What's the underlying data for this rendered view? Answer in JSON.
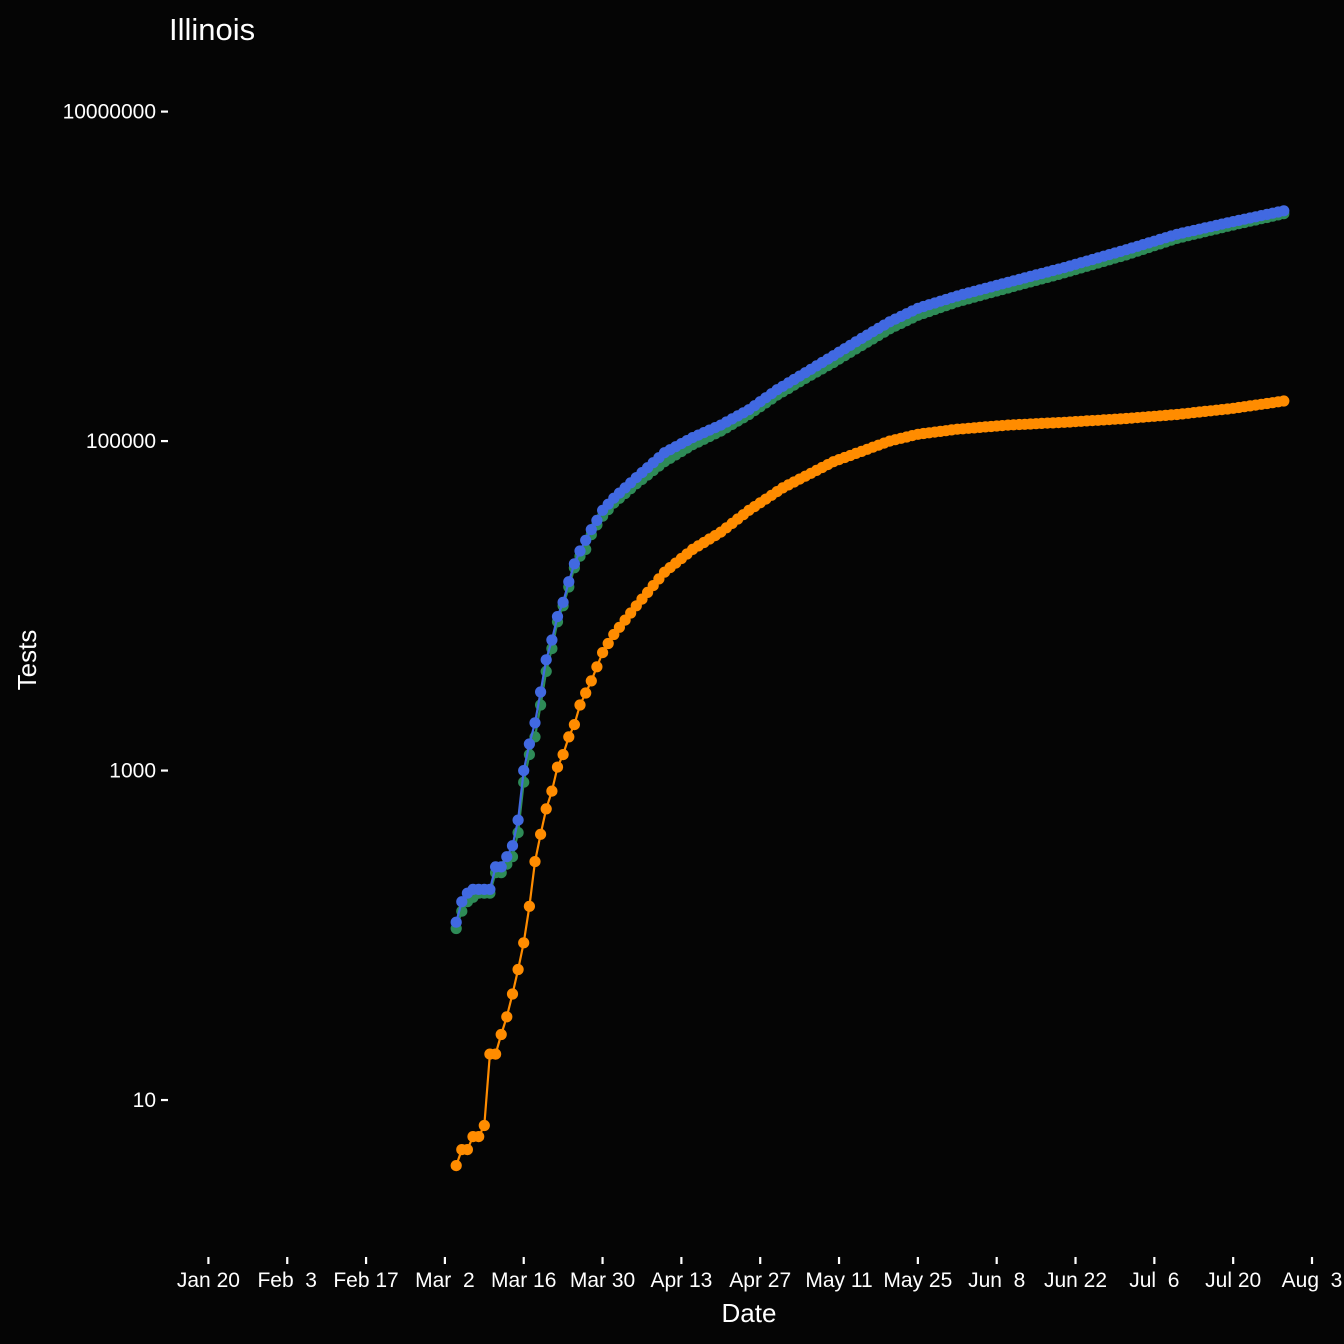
{
  "chart_data": {
    "type": "line",
    "title": "Illinois",
    "xlabel": "Date",
    "ylabel": "Tests",
    "x_scale": "date",
    "y_scale": "log",
    "xlim": [
      "2020-01-13",
      "2020-08-03"
    ],
    "ylim": [
      1.3,
      23000000
    ],
    "x_ticks": [
      {
        "date": "2020-01-20",
        "label": "Jan 20"
      },
      {
        "date": "2020-02-03",
        "label": "Feb  3"
      },
      {
        "date": "2020-02-17",
        "label": "Feb 17"
      },
      {
        "date": "2020-03-02",
        "label": "Mar  2"
      },
      {
        "date": "2020-03-16",
        "label": "Mar 16"
      },
      {
        "date": "2020-03-30",
        "label": "Mar 30"
      },
      {
        "date": "2020-04-13",
        "label": "Apr 13"
      },
      {
        "date": "2020-04-27",
        "label": "Apr 27"
      },
      {
        "date": "2020-05-11",
        "label": "May 11"
      },
      {
        "date": "2020-05-25",
        "label": "May 25"
      },
      {
        "date": "2020-06-08",
        "label": "Jun  8"
      },
      {
        "date": "2020-06-22",
        "label": "Jun 22"
      },
      {
        "date": "2020-07-06",
        "label": "Jul  6"
      },
      {
        "date": "2020-07-20",
        "label": "Jul 20"
      },
      {
        "date": "2020-08-03",
        "label": "Aug  3"
      }
    ],
    "y_ticks": [
      {
        "value": 10,
        "label": "10"
      },
      {
        "value": 1000,
        "label": "1000"
      },
      {
        "value": 100000,
        "label": "100000"
      },
      {
        "value": 10000000,
        "label": "10000000"
      }
    ],
    "grid": false,
    "legend": "none",
    "series": [
      {
        "color": "#2e8b57",
        "x": [
          "2020-03-04",
          "2020-03-05",
          "2020-03-06",
          "2020-03-07",
          "2020-03-08",
          "2020-03-09",
          "2020-03-10",
          "2020-03-11",
          "2020-03-12",
          "2020-03-13",
          "2020-03-14",
          "2020-03-15",
          "2020-03-16",
          "2020-03-17",
          "2020-03-18",
          "2020-03-19",
          "2020-03-20",
          "2020-03-21",
          "2020-03-22",
          "2020-03-23",
          "2020-03-24",
          "2020-03-25",
          "2020-03-26",
          "2020-03-27",
          "2020-03-28",
          "2020-03-29",
          "2020-03-30",
          "2020-04-01",
          "2020-04-05",
          "2020-04-10",
          "2020-04-15",
          "2020-04-20",
          "2020-04-25",
          "2020-04-30",
          "2020-05-05",
          "2020-05-10",
          "2020-05-15",
          "2020-05-20",
          "2020-05-25",
          "2020-06-01",
          "2020-06-10",
          "2020-06-20",
          "2020-07-01",
          "2020-07-10",
          "2020-07-20",
          "2020-07-29"
        ],
        "y": [
          110,
          140,
          160,
          170,
          180,
          180,
          180,
          240,
          240,
          270,
          300,
          420,
          850,
          1250,
          1600,
          2500,
          4000,
          5500,
          8000,
          10000,
          13000,
          17000,
          20000,
          22000,
          27000,
          31000,
          35000,
          42000,
          55000,
          75000,
          95000,
          115000,
          145000,
          190000,
          240000,
          300000,
          380000,
          480000,
          580000,
          700000,
          850000,
          1050000,
          1350000,
          1700000,
          2050000,
          2400000
        ]
      },
      {
        "color": "#4169e1",
        "x": [
          "2020-03-04",
          "2020-03-05",
          "2020-03-06",
          "2020-03-07",
          "2020-03-08",
          "2020-03-09",
          "2020-03-10",
          "2020-03-11",
          "2020-03-12",
          "2020-03-13",
          "2020-03-14",
          "2020-03-15",
          "2020-03-16",
          "2020-03-17",
          "2020-03-18",
          "2020-03-19",
          "2020-03-20",
          "2020-03-21",
          "2020-03-22",
          "2020-03-23",
          "2020-03-24",
          "2020-03-25",
          "2020-03-26",
          "2020-03-27",
          "2020-03-28",
          "2020-03-29",
          "2020-03-30",
          "2020-04-01",
          "2020-04-05",
          "2020-04-10",
          "2020-04-15",
          "2020-04-20",
          "2020-04-25",
          "2020-04-30",
          "2020-05-05",
          "2020-05-10",
          "2020-05-15",
          "2020-05-20",
          "2020-05-25",
          "2020-06-01",
          "2020-06-10",
          "2020-06-20",
          "2020-07-01",
          "2020-07-10",
          "2020-07-20",
          "2020-07-29"
        ],
        "y": [
          120,
          160,
          180,
          190,
          190,
          190,
          190,
          260,
          260,
          300,
          350,
          500,
          1000,
          1450,
          1950,
          3000,
          4700,
          6200,
          8600,
          10500,
          14000,
          18000,
          21500,
          25000,
          29000,
          33000,
          38000,
          45000,
          60000,
          85000,
          105000,
          125000,
          155000,
          205000,
          260000,
          330000,
          420000,
          530000,
          640000,
          760000,
          920000,
          1130000,
          1450000,
          1800000,
          2150000,
          2500000
        ]
      },
      {
        "color": "#ff8c00",
        "x": [
          "2020-03-04",
          "2020-03-05",
          "2020-03-06",
          "2020-03-07",
          "2020-03-08",
          "2020-03-09",
          "2020-03-10",
          "2020-03-11",
          "2020-03-12",
          "2020-03-13",
          "2020-03-14",
          "2020-03-15",
          "2020-03-16",
          "2020-03-17",
          "2020-03-18",
          "2020-03-19",
          "2020-03-20",
          "2020-03-21",
          "2020-03-22",
          "2020-03-23",
          "2020-03-24",
          "2020-03-25",
          "2020-03-26",
          "2020-03-28",
          "2020-03-30",
          "2020-04-01",
          "2020-04-05",
          "2020-04-10",
          "2020-04-15",
          "2020-04-20",
          "2020-04-25",
          "2020-05-01",
          "2020-05-10",
          "2020-05-20",
          "2020-05-25",
          "2020-06-01",
          "2020-06-10",
          "2020-06-20",
          "2020-07-01",
          "2020-07-10",
          "2020-07-20",
          "2020-07-29"
        ],
        "y": [
          4,
          5,
          5,
          6,
          6,
          7,
          19,
          19,
          25,
          32,
          44,
          62,
          90,
          150,
          280,
          410,
          585,
          750,
          1050,
          1250,
          1600,
          1900,
          2500,
          3500,
          5200,
          6700,
          10000,
          16000,
          22000,
          28000,
          38000,
          52000,
          75000,
          100000,
          110000,
          118000,
          125000,
          130000,
          137000,
          145000,
          158000,
          175000
        ]
      }
    ]
  }
}
